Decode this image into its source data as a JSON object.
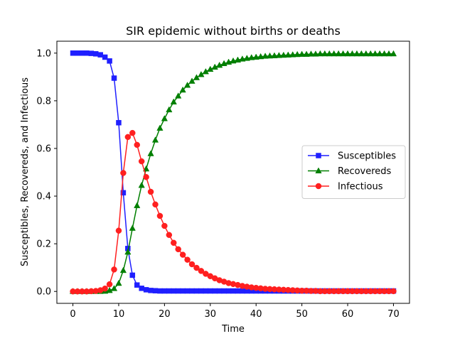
{
  "chart_data": {
    "type": "line",
    "title": "SIR epidemic without births or deaths",
    "xlabel": "Time",
    "ylabel": "Susceptibles, Recovereds, and Infectious",
    "xlim": [
      -3.5,
      73.5
    ],
    "ylim": [
      -0.05,
      1.05
    ],
    "xticks": [
      "0",
      "10",
      "20",
      "30",
      "40",
      "50",
      "60",
      "70"
    ],
    "yticks": [
      "0.0",
      "0.2",
      "0.4",
      "0.6",
      "0.8",
      "1.0"
    ],
    "grid": false,
    "legend_position": "center-right",
    "x": [
      0,
      1,
      2,
      3,
      4,
      5,
      6,
      7,
      8,
      9,
      10,
      11,
      12,
      13,
      14,
      15,
      16,
      17,
      18,
      19,
      20,
      21,
      22,
      23,
      24,
      25,
      26,
      27,
      28,
      29,
      30,
      31,
      32,
      33,
      34,
      35,
      36,
      37,
      38,
      39,
      40,
      41,
      42,
      43,
      44,
      45,
      46,
      47,
      48,
      49,
      50,
      51,
      52,
      53,
      54,
      55,
      56,
      57,
      58,
      59,
      60,
      61,
      62,
      63,
      64,
      65,
      66,
      67,
      68,
      69,
      70
    ],
    "series": [
      {
        "name": "Susceptibles",
        "color": "#1f1fff",
        "marker": "square",
        "values": [
          1.0,
          1.0,
          1.0,
          1.0,
          0.999,
          0.997,
          0.993,
          0.983,
          0.967,
          0.895,
          0.708,
          0.414,
          0.18,
          0.068,
          0.027,
          0.013,
          0.007,
          0.004,
          0.003,
          0.002,
          0.002,
          0.002,
          0.002,
          0.002,
          0.002,
          0.002,
          0.002,
          0.002,
          0.002,
          0.002,
          0.002,
          0.002,
          0.002,
          0.002,
          0.002,
          0.002,
          0.002,
          0.002,
          0.002,
          0.002,
          0.002,
          0.002,
          0.002,
          0.002,
          0.002,
          0.002,
          0.002,
          0.002,
          0.002,
          0.002,
          0.002,
          0.002,
          0.002,
          0.002,
          0.002,
          0.002,
          0.002,
          0.002,
          0.002,
          0.002,
          0.002,
          0.002,
          0.002,
          0.002,
          0.002,
          0.002,
          0.002,
          0.002,
          0.002,
          0.002,
          0.002
        ]
      },
      {
        "name": "Recovereds",
        "color": "#007f00",
        "marker": "triangle",
        "values": [
          0.0,
          0.0,
          0.0,
          0.0,
          0.0,
          0.0,
          0.0,
          0.001,
          0.004,
          0.012,
          0.034,
          0.088,
          0.165,
          0.265,
          0.36,
          0.445,
          0.514,
          0.578,
          0.635,
          0.685,
          0.725,
          0.762,
          0.795,
          0.82,
          0.845,
          0.865,
          0.882,
          0.897,
          0.91,
          0.922,
          0.932,
          0.941,
          0.949,
          0.956,
          0.962,
          0.967,
          0.971,
          0.975,
          0.978,
          0.981,
          0.983,
          0.985,
          0.987,
          0.988,
          0.989,
          0.99,
          0.991,
          0.992,
          0.993,
          0.994,
          0.995,
          0.995,
          0.996,
          0.996,
          0.997,
          0.997,
          0.997,
          0.997,
          0.997,
          0.997,
          0.997,
          0.997,
          0.997,
          0.997,
          0.997,
          0.997,
          0.997,
          0.997,
          0.997,
          0.997,
          0.997
        ]
      },
      {
        "name": "Infectious",
        "color": "#ff1f1f",
        "marker": "circle",
        "values": [
          0.0,
          0.0,
          0.0,
          0.0,
          0.001,
          0.002,
          0.005,
          0.012,
          0.03,
          0.092,
          0.255,
          0.497,
          0.648,
          0.665,
          0.615,
          0.546,
          0.48,
          0.418,
          0.365,
          0.317,
          0.275,
          0.237,
          0.204,
          0.177,
          0.154,
          0.133,
          0.114,
          0.099,
          0.086,
          0.074,
          0.064,
          0.055,
          0.047,
          0.041,
          0.035,
          0.031,
          0.027,
          0.023,
          0.02,
          0.017,
          0.015,
          0.013,
          0.011,
          0.01,
          0.009,
          0.008,
          0.007,
          0.006,
          0.005,
          0.004,
          0.003,
          0.003,
          0.002,
          0.002,
          0.001,
          0.001,
          0.001,
          0.001,
          0.001,
          0.001,
          0.001,
          0.001,
          0.001,
          0.001,
          0.001,
          0.001,
          0.001,
          0.001,
          0.001,
          0.001,
          0.001
        ]
      }
    ]
  }
}
